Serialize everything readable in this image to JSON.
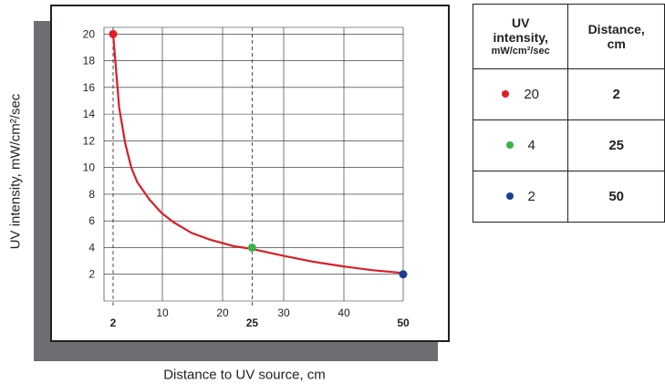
{
  "chart_data": {
    "type": "line",
    "ylabel": "UV intensity, mW/cm²/sec",
    "xlabel": "Distance to UV source, cm",
    "xlim": [
      0,
      51
    ],
    "ylim": [
      0,
      20.5
    ],
    "y_ticks": [
      "20",
      "18",
      "16",
      "14",
      "12",
      "10",
      "8",
      "6",
      "4",
      "2"
    ],
    "x_ticks": [
      "10",
      "20",
      "30",
      "40"
    ],
    "x_highlight_ticks": [
      "2",
      "25",
      "50"
    ],
    "series": [
      {
        "x": [
          2,
          3,
          4,
          5,
          6,
          8,
          10,
          12,
          15,
          18,
          20,
          22,
          25,
          28,
          30,
          35,
          40,
          45,
          50
        ],
        "y": [
          20,
          14.5,
          11.8,
          10,
          8.9,
          7.6,
          6.6,
          5.9,
          5.1,
          4.6,
          4.35,
          4.1,
          3.9,
          3.6,
          3.4,
          2.95,
          2.6,
          2.3,
          2.1
        ]
      }
    ],
    "points": [
      {
        "x": 2,
        "y": 20,
        "color": "#e31b23"
      },
      {
        "x": 25,
        "y": 4,
        "color": "#37b34a"
      },
      {
        "x": 50,
        "y": 2,
        "color": "#1c3f94"
      }
    ],
    "curve_color": "#d71f26",
    "grid": true
  },
  "table": {
    "header_col1_line1": "UV",
    "header_col1_line2": "intensity,",
    "header_col1_unit": "mW/cm²/sec",
    "header_col2_line1": "Distance,",
    "header_col2_line2": "cm",
    "rows": [
      {
        "intensity": "20",
        "distance": "2",
        "color": "#e31b23"
      },
      {
        "intensity": "4",
        "distance": "25",
        "color": "#37b34a"
      },
      {
        "intensity": "2",
        "distance": "50",
        "color": "#1c3f94"
      }
    ]
  }
}
